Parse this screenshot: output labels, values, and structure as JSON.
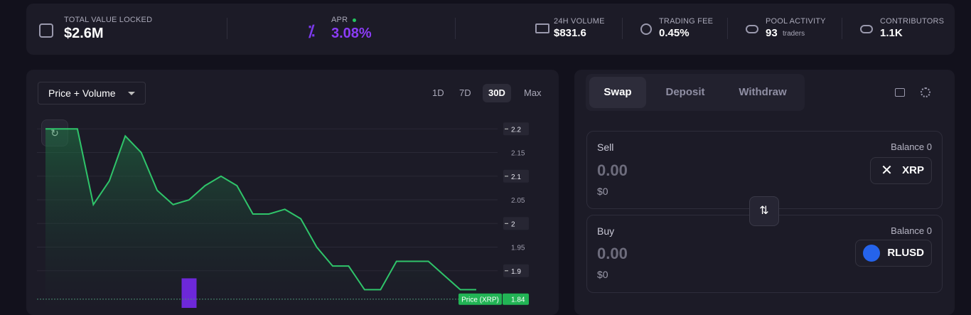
{
  "stats": {
    "total_value_locked": {
      "label": "TOTAL VALUE LOCKED",
      "value": "$2.6M"
    },
    "apr": {
      "label": "APR",
      "value": "3.08%"
    },
    "volume_24h": {
      "label": "24H VOLUME",
      "value": "$831.6"
    },
    "trading_fee": {
      "label": "TRADING FEE",
      "value": "0.45%"
    },
    "pool_activity": {
      "label": "POOL ACTIVITY",
      "value": "93",
      "unit": "traders"
    },
    "contributors": {
      "label": "CONTRIBUTORS",
      "value": "1.1K"
    }
  },
  "chart_controls": {
    "dropdown": "Price + Volume",
    "ranges": [
      "1D",
      "7D",
      "30D",
      "Max"
    ],
    "active_range": 2
  },
  "chart_data": {
    "type": "area",
    "color": "#2fc46a",
    "grid": true,
    "values": [
      2.2,
      2.2,
      2.2,
      2.04,
      2.09,
      2.185,
      2.15,
      2.07,
      2.04,
      2.05,
      2.08,
      2.1,
      2.08,
      2.02,
      2.02,
      2.03,
      2.01,
      1.95,
      1.91,
      1.91,
      1.86,
      1.86,
      1.92,
      1.92,
      1.92,
      1.89,
      1.86,
      1.86
    ],
    "ylim": [
      1.82,
      2.22
    ],
    "yticks": [
      2.2,
      2.15,
      2.1,
      2.05,
      2,
      1.95,
      1.9
    ],
    "volume": {
      "color": "#6d28d9",
      "axis": "y2",
      "values": [
        null,
        null,
        null,
        null,
        null,
        null,
        null,
        null,
        null,
        0.16,
        null,
        null,
        null,
        null,
        null,
        null,
        null,
        null,
        null,
        null,
        null,
        null,
        null,
        null,
        null,
        null,
        null,
        null
      ]
    },
    "y2lim": [
      0,
      1
    ],
    "current_price": {
      "label": "Price (XRP)",
      "value": 1.84,
      "color": "#22b455"
    }
  },
  "swap": {
    "tabs": [
      "Swap",
      "Deposit",
      "Withdraw"
    ],
    "active_tab": 0,
    "sell": {
      "label": "Sell",
      "balance": "Balance 0",
      "amount": "0.00",
      "fiat": "$0",
      "token": "XRP"
    },
    "buy": {
      "label": "Buy",
      "balance": "Balance 0",
      "amount": "0.00",
      "fiat": "$0",
      "token": "RLUSD"
    }
  }
}
